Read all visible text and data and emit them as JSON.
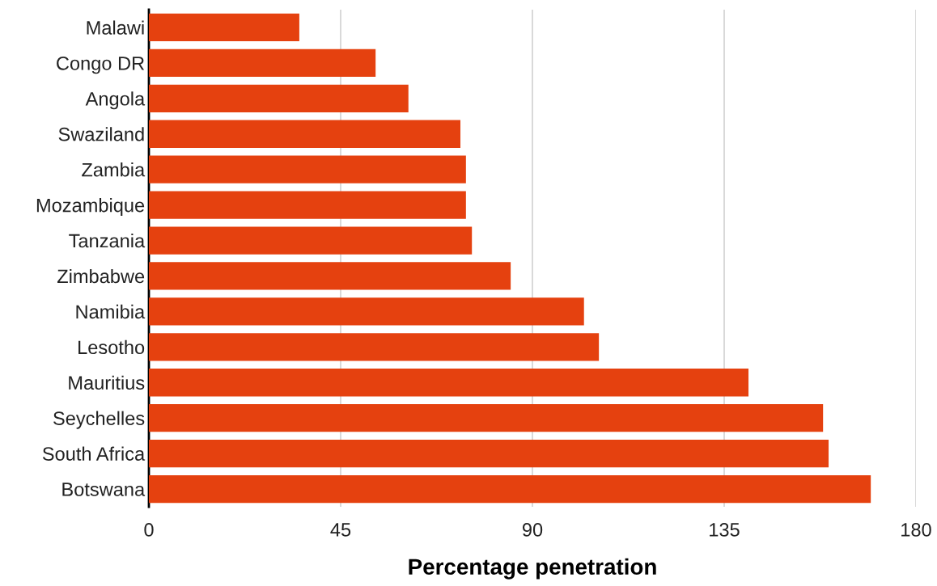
{
  "chart_data": {
    "type": "bar",
    "orientation": "horizontal",
    "xlabel": "Percentage penetration",
    "categories": [
      "Malawi",
      "Congo DR",
      "Angola",
      "Swaziland",
      "Zambia",
      "Mozambique",
      "Tanzania",
      "Zimbabwe",
      "Namibia",
      "Lesotho",
      "Mauritius",
      "Seychelles",
      "South Africa",
      "Botswana"
    ],
    "values": [
      35.3,
      53.2,
      60.9,
      73.1,
      74.4,
      74.4,
      75.8,
      84.9,
      102.1,
      105.6,
      140.7,
      158.2,
      159.5,
      169.4
    ],
    "color": "#e5410f",
    "xlim": [
      0,
      180
    ],
    "xticks": [
      0,
      45,
      90,
      135,
      180
    ],
    "grid": "x"
  }
}
